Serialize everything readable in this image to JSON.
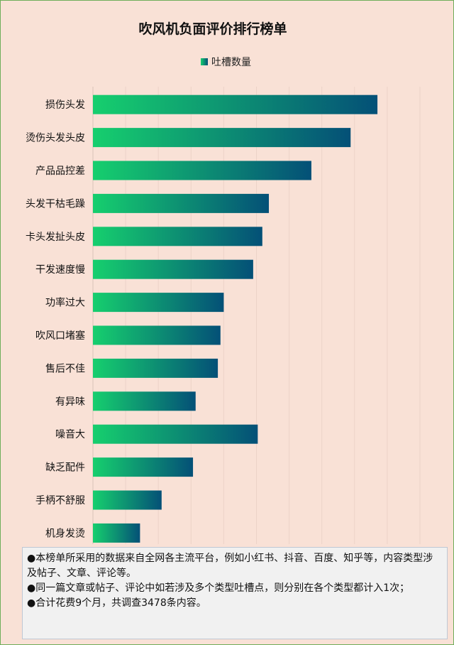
{
  "chart_data": {
    "type": "bar",
    "orientation": "horizontal",
    "title": "吹风机负面评价排行榜单",
    "legend": {
      "position": "top",
      "label": "吐槽数量"
    },
    "categories": [
      "损伤头发",
      "烫伤头发头皮",
      "产品品控差",
      "头发干枯毛躁",
      "卡头发扯头皮",
      "干发速度慢",
      "功率过大",
      "吹风口堵塞",
      "售后不佳",
      "有异味",
      "噪音大",
      "缺乏配件",
      "手柄不舒服",
      "机身发烫"
    ],
    "series": [
      {
        "name": "吐槽数量",
        "values": [
          435,
          394,
          334,
          269,
          259,
          245,
          200,
          195,
          191,
          157,
          252,
          153,
          105,
          72
        ]
      }
    ],
    "xlim": [
      0,
      500
    ],
    "grid": true,
    "gradient": [
      "#16cf6e",
      "#045077"
    ]
  },
  "notes": [
    "●本榜单所采用的数据来自全网各主流平台，例如小红书、抖音、百度、知乎等，内容类型涉及帖子、文章、评论等。",
    "●同一篇文章或帖子、评论中如若涉及多个类型吐槽点，则分别在各个类型都计入1次；",
    "●合计花费9个月，共调查3478条内容。"
  ]
}
